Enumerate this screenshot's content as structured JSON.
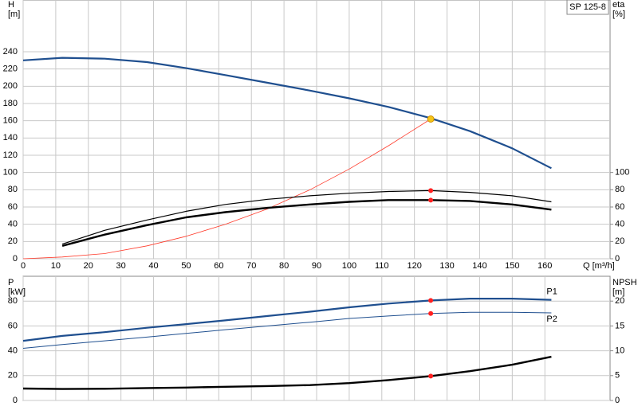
{
  "chart_data": [
    {
      "type": "line",
      "title": "SP 125-8",
      "ylabel": [
        "H",
        "[m]"
      ],
      "y2label": [
        "eta",
        "[%]"
      ],
      "xlabel": "Q [m³/h]",
      "x": [
        0,
        12,
        25,
        38,
        50,
        62,
        75,
        88,
        100,
        112,
        125,
        137,
        150,
        162
      ],
      "xlim": [
        0,
        180
      ],
      "xticks": [
        0,
        10,
        20,
        30,
        40,
        50,
        60,
        70,
        80,
        90,
        100,
        110,
        120,
        130,
        140,
        150,
        160
      ],
      "xtick_labels": true,
      "ylim": [
        0,
        300
      ],
      "yticks": [
        0,
        20,
        40,
        60,
        80,
        100,
        120,
        140,
        160,
        180,
        200,
        220,
        240
      ],
      "y2lim": [
        0,
        300
      ],
      "y2ticks": [
        0,
        20,
        40,
        60,
        80,
        100
      ],
      "grid": true,
      "series": [
        {
          "color": "#1f4f8f",
          "line_width": 2.2,
          "axis": "y",
          "values": [
            230,
            233,
            232,
            228,
            221,
            213,
            204,
            195,
            186,
            176,
            163,
            148,
            128,
            105
          ]
        },
        {
          "color": "#ff3a2a",
          "line_width": 0.8,
          "axis": "y",
          "values": [
            0,
            2,
            6,
            15,
            26,
            40,
            58,
            80,
            104,
            131,
            162,
            null,
            null,
            null
          ]
        },
        {
          "color": "#000000",
          "line_width": 1.2,
          "axis": "y2",
          "values": [
            null,
            17,
            33,
            45,
            55,
            63,
            69,
            73,
            76,
            78,
            79,
            77,
            73,
            66
          ]
        },
        {
          "color": "#000000",
          "line_width": 2.4,
          "axis": "y2",
          "values": [
            null,
            15,
            28,
            39,
            48,
            54,
            59,
            63,
            66,
            68,
            68,
            67,
            63,
            57
          ]
        }
      ],
      "markers": [
        {
          "x": 125,
          "y": 162,
          "axis": "y",
          "color": "#f5c518"
        },
        {
          "x": 125,
          "y": 79,
          "axis": "y2",
          "color": "#ff2020"
        },
        {
          "x": 125,
          "y": 68,
          "axis": "y2",
          "color": "#ff2020"
        }
      ]
    },
    {
      "type": "line",
      "ylabel": [
        "P",
        "[kW]"
      ],
      "y2label": [
        "NPSH",
        "[m]"
      ],
      "x": [
        0,
        12,
        25,
        38,
        50,
        62,
        75,
        88,
        100,
        112,
        125,
        137,
        150,
        162
      ],
      "xlim": [
        0,
        180
      ],
      "xticks": [
        0,
        10,
        20,
        30,
        40,
        50,
        60,
        70,
        80,
        90,
        100,
        110,
        120,
        130,
        140,
        150,
        160
      ],
      "xtick_labels": false,
      "ylim": [
        0,
        100
      ],
      "yticks": [
        0,
        20,
        40,
        60,
        80
      ],
      "y2lim": [
        0,
        25
      ],
      "y2ticks": [
        0,
        5,
        10,
        15,
        20
      ],
      "grid": true,
      "series": [
        {
          "name": "P1",
          "color": "#1f4f8f",
          "line_width": 2.2,
          "axis": "y",
          "values": [
            48,
            52,
            55,
            58.5,
            61.5,
            64.5,
            68,
            71.5,
            75,
            78,
            80.5,
            82,
            82,
            81
          ]
        },
        {
          "name": "P2",
          "color": "#1f4f8f",
          "line_width": 1,
          "axis": "y",
          "values": [
            42,
            45,
            48,
            51,
            54,
            57,
            60,
            63,
            66,
            68,
            70,
            71,
            71,
            70.5
          ]
        },
        {
          "color": "#000000",
          "line_width": 2.4,
          "axis": "y2",
          "values": [
            2.4,
            2.3,
            2.35,
            2.5,
            2.6,
            2.75,
            2.9,
            3.1,
            3.5,
            4.1,
            4.9,
            5.9,
            7.2,
            8.8
          ]
        }
      ],
      "markers": [
        {
          "x": 125,
          "y": 80.5,
          "axis": "y",
          "color": "#ff2020"
        },
        {
          "x": 125,
          "y": 70,
          "axis": "y",
          "color": "#ff2020"
        },
        {
          "x": 125,
          "y": 4.9,
          "axis": "y2",
          "color": "#ff2020"
        }
      ]
    }
  ]
}
